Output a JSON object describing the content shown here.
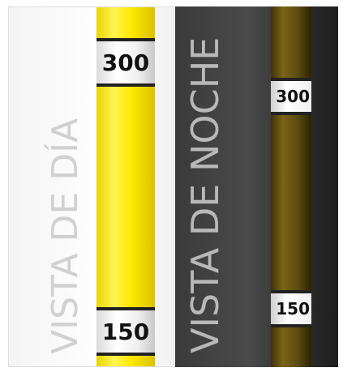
{
  "panels": [
    {
      "caption": "VISTA DE DÍA",
      "markers": [
        "300",
        "150"
      ]
    },
    {
      "caption": "VISTA DE NOCHE",
      "markers": [
        "300",
        "150"
      ]
    }
  ]
}
